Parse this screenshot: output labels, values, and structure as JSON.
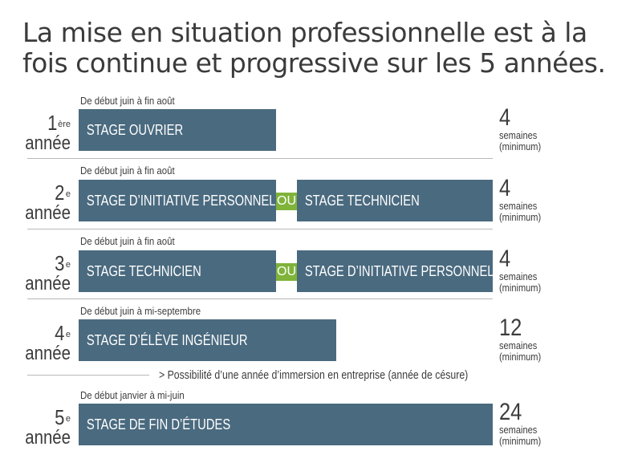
{
  "title": {
    "line1": "La mise en situation professionnelle est à la",
    "line2": "fois continue et progressive sur les 5 années."
  },
  "units": {
    "weeks": "semaines",
    "minimum": "(minimum)"
  },
  "rows": [
    {
      "period": "De début juin à fin août",
      "year_num": "1",
      "year_sup": "ère",
      "year_word": "année",
      "stage_a": "STAGE OUVRIER",
      "duration": "4"
    },
    {
      "period": "De début juin à fin août",
      "year_num": "2",
      "year_sup": "e",
      "year_word": "année",
      "stage_a": "STAGE D’INITIATIVE PERSONNELLE",
      "ou": "OU",
      "stage_b": "STAGE TECHNICIEN",
      "duration": "4"
    },
    {
      "period": "De début juin à fin août",
      "year_num": "3",
      "year_sup": "e",
      "year_word": "année",
      "stage_a": "STAGE TECHNICIEN",
      "ou": "OU",
      "stage_b": "STAGE D’INITIATIVE PERSONNELLE",
      "duration": "4"
    },
    {
      "period": "De début juin à mi-septembre",
      "year_num": "4",
      "year_sup": "e",
      "year_word": "année",
      "stage_a": "STAGE D’ÉLÈVE INGÉNIEUR",
      "duration": "12"
    },
    {
      "period": "De début janvier à mi-juin",
      "year_num": "5",
      "year_sup": "e",
      "year_word": "année",
      "stage_a": "STAGE DE FIN D’ÉTUDES",
      "duration": "24"
    }
  ],
  "note": "> Possibilité d’une année d’immersion en entreprise (année de césure)",
  "colors": {
    "bar": "#4a6a7f",
    "ou": "#7fb33a",
    "text": "#3c3c3c"
  }
}
